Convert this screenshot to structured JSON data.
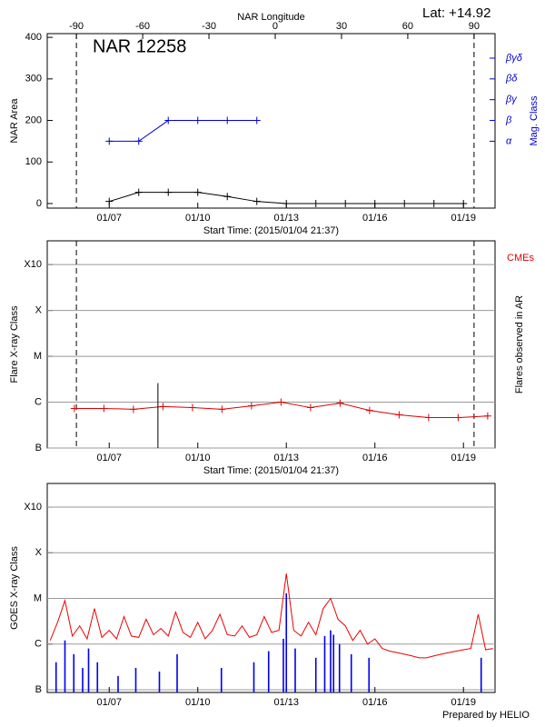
{
  "chart_data": [
    {
      "type": "line",
      "title": "NAR 12258",
      "annotation": "Lat: +14.92",
      "x2label": "NAR Longitude",
      "x2lim": [
        -103.2,
        99.5
      ],
      "x2ticks": [
        -90,
        -60,
        -30,
        0,
        30,
        60,
        90
      ],
      "xlabel": "Start Time: (2015/01/04 21:37)",
      "xlim": [
        4.9,
        20.07
      ],
      "xticks": [
        {
          "value": 7,
          "label": "01/07"
        },
        {
          "value": 10,
          "label": "01/10"
        },
        {
          "value": 13,
          "label": "01/13"
        },
        {
          "value": 16,
          "label": "01/16"
        },
        {
          "value": 19,
          "label": "01/19"
        }
      ],
      "ylabel": "NAR Area",
      "ylim": [
        -11,
        409
      ],
      "yticks": [
        0,
        100,
        200,
        300,
        400
      ],
      "y2label": "Mag. Class",
      "y2lim": [
        -11,
        409
      ],
      "y2ticks": [
        {
          "value": 150,
          "label": "α"
        },
        {
          "value": 200,
          "label": "β"
        },
        {
          "value": 250,
          "label": "βγ"
        },
        {
          "value": 300,
          "label": "βδ"
        },
        {
          "value": 350,
          "label": "βγδ"
        }
      ],
      "log_scale": false,
      "grid": false,
      "limb_lines": true,
      "series": [
        {
          "color": "#000000",
          "marker": "+",
          "x": [
            7,
            8,
            9,
            10,
            11,
            12,
            13,
            14,
            15,
            16,
            17,
            18,
            19
          ],
          "values": [
            5,
            27,
            27,
            27,
            17,
            5,
            0,
            0,
            0,
            0,
            0,
            0,
            0
          ]
        },
        {
          "color": "#0000dd",
          "marker": "+",
          "axis": "y2",
          "x": [
            7,
            8,
            9,
            10,
            11,
            12
          ],
          "values": [
            150,
            150,
            200,
            200,
            200,
            200
          ]
        }
      ]
    },
    {
      "type": "line",
      "xlabel": "Start Time: (2015/01/04 21:37)",
      "xlim": [
        4.9,
        20.07
      ],
      "xticks": [
        {
          "value": 7,
          "label": "01/07"
        },
        {
          "value": 10,
          "label": "01/10"
        },
        {
          "value": 13,
          "label": "01/13"
        },
        {
          "value": 16,
          "label": "01/16"
        },
        {
          "value": 19,
          "label": "01/19"
        }
      ],
      "ylabel": "Flare X-ray Class",
      "y2label": "Flares observed in AR",
      "annotation": "CMEs",
      "log_scale": true,
      "grid": true,
      "limb_lines": true,
      "ylim": [
        1e-07,
        0.0033
      ],
      "yticks": [
        {
          "value": 1e-07,
          "label": "B"
        },
        {
          "value": 1e-06,
          "label": "C"
        },
        {
          "value": 1e-05,
          "label": "M"
        },
        {
          "value": 0.0001,
          "label": "X"
        },
        {
          "value": 0.001,
          "label": "X10"
        }
      ],
      "series": [
        {
          "color": "#dd0000",
          "marker": "+",
          "x": [
            5.82,
            6.82,
            7.82,
            8.82,
            9.82,
            10.82,
            11.82,
            12.82,
            13.82,
            14.82,
            15.82,
            16.82,
            17.82,
            18.82,
            19.82
          ],
          "values": [
            7.3e-07,
            7.3e-07,
            7e-07,
            8e-07,
            7.6e-07,
            7e-07,
            8.3e-07,
            1e-06,
            7.6e-07,
            9.5e-07,
            6.6e-07,
            5.3e-07,
            4.6e-07,
            4.6e-07,
            5e-07
          ]
        }
      ],
      "events": [
        {
          "x": 8.65,
          "value": 2.6e-06,
          "color": "#000000"
        }
      ]
    },
    {
      "type": "line",
      "xlim": [
        4.9,
        20.07
      ],
      "xticks": [
        {
          "value": 7,
          "label": "01/07"
        },
        {
          "value": 10,
          "label": "01/10"
        },
        {
          "value": 13,
          "label": "01/13"
        },
        {
          "value": 16,
          "label": "01/16"
        },
        {
          "value": 19,
          "label": "01/19"
        }
      ],
      "ylabel": "GOES X-ray Class",
      "log_scale": true,
      "grid": true,
      "ylim": [
        8.7e-08,
        0.0033
      ],
      "yticks": [
        {
          "value": 1e-07,
          "label": "B"
        },
        {
          "value": 1e-06,
          "label": "C"
        },
        {
          "value": 1e-05,
          "label": "M"
        },
        {
          "value": 0.0001,
          "label": "X"
        },
        {
          "value": 0.001,
          "label": "X10"
        }
      ],
      "footer": "Prepared by HELIO",
      "series": [
        {
          "color": "#0000ee",
          "kind": "bar",
          "x": [
            5.2,
            5.5,
            5.8,
            6.1,
            6.3,
            6.6,
            7.3,
            7.9,
            8.7,
            9.3,
            10.8,
            11.9,
            12.4,
            12.9,
            13.0,
            13.3,
            14.0,
            14.3,
            14.5,
            14.6,
            14.8,
            15.2,
            15.8,
            19.6
          ],
          "values": [
            4e-07,
            1.2e-06,
            6e-07,
            3e-07,
            8e-07,
            4e-07,
            2e-07,
            3e-07,
            2.5e-07,
            6e-07,
            3e-07,
            4e-07,
            7e-07,
            1.3e-06,
            1.3e-05,
            8e-07,
            5e-07,
            1.5e-06,
            2e-06,
            1.6e-06,
            1e-06,
            6e-07,
            5e-07,
            5e-07
          ]
        },
        {
          "color": "#ee0000",
          "x": [
            5.0,
            5.25,
            5.5,
            5.75,
            6.0,
            6.25,
            6.5,
            6.75,
            7.0,
            7.25,
            7.5,
            7.75,
            8.0,
            8.25,
            8.5,
            8.75,
            9.0,
            9.25,
            9.5,
            9.75,
            10.0,
            10.25,
            10.5,
            10.75,
            11.0,
            11.25,
            11.5,
            11.75,
            12.0,
            12.25,
            12.5,
            12.75,
            13.0,
            13.25,
            13.5,
            13.75,
            14.0,
            14.25,
            14.5,
            14.75,
            15.0,
            15.25,
            15.5,
            15.75,
            16.0,
            16.25,
            16.5,
            16.75,
            17.0,
            17.25,
            17.5,
            17.75,
            18.0,
            18.25,
            18.5,
            18.75,
            19.0,
            19.25,
            19.5,
            19.75,
            20.0
          ],
          "values": [
            1.2e-06,
            3e-06,
            9e-06,
            1.5e-06,
            2.5e-06,
            1.3e-06,
            6e-06,
            1.4e-06,
            2e-06,
            1.3e-06,
            4e-06,
            1.5e-06,
            1.4e-06,
            3.5e-06,
            1.6e-06,
            2.2e-06,
            1.5e-06,
            5e-06,
            1.8e-06,
            1.4e-06,
            3e-06,
            1.3e-06,
            2e-06,
            4.5e-06,
            1.6e-06,
            1.5e-06,
            2.5e-06,
            1.4e-06,
            1.6e-06,
            4e-06,
            1.8e-06,
            2e-06,
            3.5e-05,
            2e-06,
            1.5e-06,
            3e-06,
            1.6e-06,
            6e-06,
            1e-05,
            3.5e-06,
            2.5e-06,
            1.2e-06,
            2e-06,
            1e-06,
            1.3e-06,
            8e-07,
            7e-07,
            6.5e-07,
            6e-07,
            5.5e-07,
            5e-07,
            5e-07,
            5.5e-07,
            6e-07,
            6.5e-07,
            7e-07,
            7.5e-07,
            8e-07,
            4.5e-06,
            7.5e-07,
            8e-07
          ]
        }
      ]
    }
  ]
}
